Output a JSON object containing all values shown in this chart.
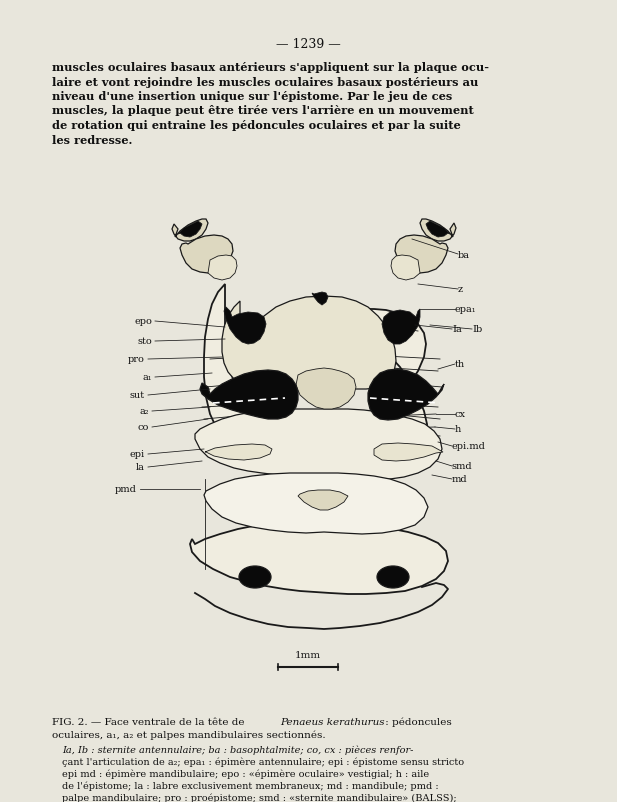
{
  "bg": "#e8e6dc",
  "ink": "#1a1a1a",
  "page_num": "— 1239 —",
  "para": "muscles oculaires basaux antérieurs s'appliquent sur la plaque ocu-\nlaire et vont rejoindre les muscles oculaires basaux postérieurs au\nniveau d'une insertion unique sur l'épistome. Par le jeu de ces\nmuscles, la plaque peut être tirée vers l'arrière en un mouvement\nde rotation qui entraine les pédoncules oculaires et par la suite\nles redresse.",
  "fig_caption_1": "FIG. 2. — Face ventrale de la tête de ",
  "fig_caption_species": "Penaeus kerathurus",
  "fig_caption_2": " : pédoncules",
  "fig_caption_3": "oculaires, a₁, a₂ et palpes mandibulaires sectionnés.",
  "fig_detail": "Ia, Ib : sternite antennulaire; ba : basophtalmite; co, cx : pièces renfor-\nçant l'articulation de a₂; epa₁ : épimère antennulaire; epi : épistome sensu stricto\nepi md : épimère mandibulaire; epo : «épimère oculaire» vestigial; h : aile\nde l'épistome; la : labre exclusivement membraneux; md : mandibule; pmd :\npalpe mandibulaire; pro : proépistome; smd : «sternite mandibulaire» (BALSS);",
  "scalebar": "1mm"
}
